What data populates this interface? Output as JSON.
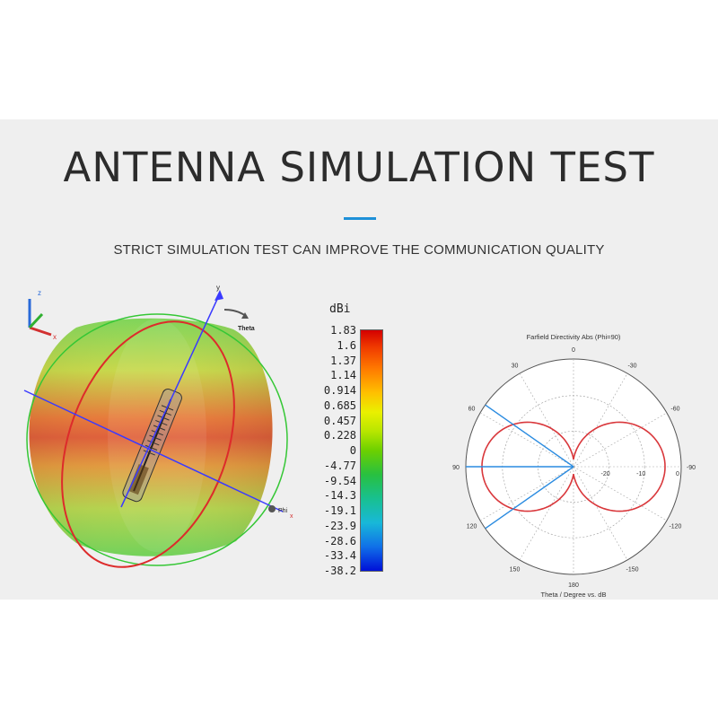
{
  "header": {
    "title": "ANTENNA SIMULATION TEST",
    "subtitle": "STRICT SIMULATION TEST CAN IMPROVE THE COMMUNICATION QUALITY",
    "accent_color": "#1e90d8"
  },
  "sim3d": {
    "axis_labels": {
      "z": "z",
      "y": "y",
      "x": "x",
      "theta": "Theta",
      "phi": "Phi"
    }
  },
  "colorbar": {
    "unit": "dBi",
    "ticks": [
      "1.83",
      "1.6",
      "1.37",
      "1.14",
      "0.914",
      "0.685",
      "0.457",
      "0.228",
      "0",
      "-4.77",
      "-9.54",
      "-14.3",
      "-19.1",
      "-23.9",
      "-28.6",
      "-33.4",
      "-38.2"
    ]
  },
  "polar": {
    "title": "Farfield Directivity Abs (Phi=90)",
    "xlabel": "Theta / Degree vs. dB",
    "angle_labels": {
      "a0": "0",
      "a30": "30",
      "a60": "60",
      "a90": "90",
      "a120": "120",
      "a150": "150",
      "a180": "180",
      "m30": "-30",
      "m60": "-60",
      "m90": "-90",
      "m120": "-120",
      "m150": "-150"
    },
    "radial_labels": [
      "-20",
      "-10",
      "0"
    ],
    "curve_color": "#d9373b",
    "beam_color": "#2a8be0"
  }
}
